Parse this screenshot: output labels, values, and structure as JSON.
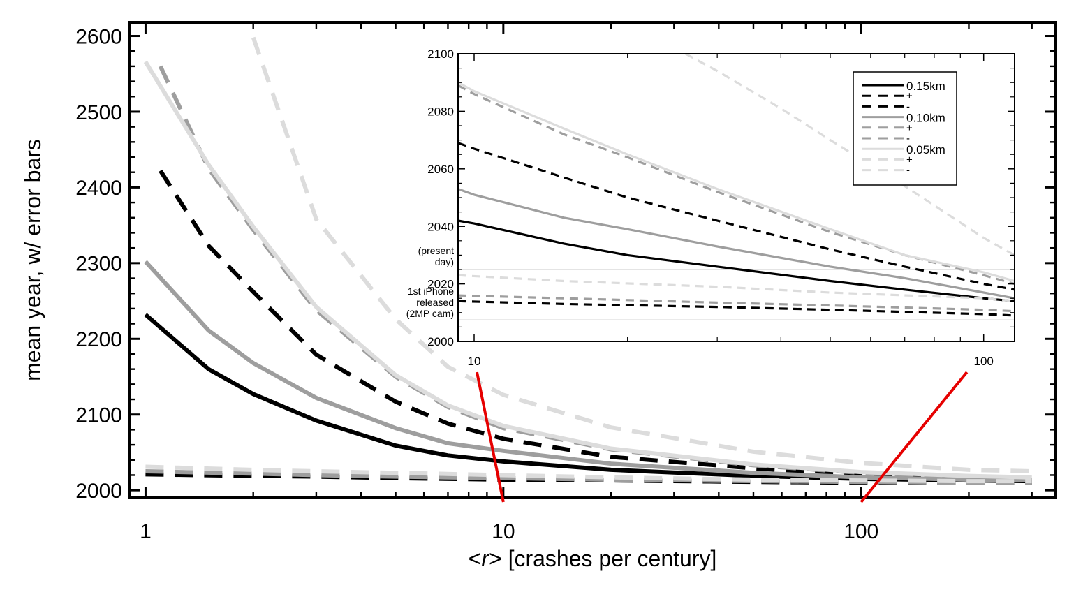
{
  "chart_data": [
    {
      "type": "line",
      "role": "main",
      "xscale": "log",
      "xlim": [
        0.9,
        350
      ],
      "ylim": [
        1990,
        2618
      ],
      "xlabel_prefix": "<",
      "xlabel_var": "r",
      "xlabel_suffix": "> [crashes per century]",
      "ylabel": "mean year, w/ error bars",
      "xticks": [
        1,
        10,
        100
      ],
      "xtick_labels": [
        "1",
        "10",
        "100"
      ],
      "yticks": [
        2000,
        2100,
        2200,
        2300,
        2400,
        2500,
        2600
      ],
      "ytick_labels": [
        "2000",
        "2100",
        "2200",
        "2300",
        "2400",
        "2500",
        "2600"
      ],
      "series": [
        {
          "color": "#000000",
          "style": "solid",
          "x": [
            1,
            1.5,
            2,
            3,
            5,
            7,
            10,
            20,
            50,
            100,
            200,
            300
          ],
          "y": [
            2232,
            2160,
            2127,
            2092,
            2059,
            2046,
            2038,
            2027,
            2019,
            2015,
            2013,
            2012
          ]
        },
        {
          "color": "#000000",
          "style": "dashed",
          "x": [
            1.1,
            1.5,
            2,
            3,
            5,
            7,
            10,
            20,
            50,
            100,
            200,
            300
          ],
          "y": [
            2422,
            2323,
            2262,
            2179,
            2117,
            2088,
            2068,
            2044,
            2029,
            2020,
            2016,
            2014
          ]
        },
        {
          "color": "#000000",
          "style": "dashed",
          "x": [
            1,
            2,
            3,
            5,
            10,
            20,
            50,
            100,
            200,
            300
          ],
          "y": [
            2021,
            2019,
            2018,
            2016,
            2014,
            2013,
            2011,
            2010,
            2010,
            2010
          ]
        },
        {
          "color": "#9e9e9e",
          "style": "solid",
          "x": [
            1,
            1.5,
            2,
            3,
            5,
            7,
            10,
            20,
            50,
            100,
            200,
            300
          ],
          "y": [
            2302,
            2211,
            2168,
            2122,
            2082,
            2062,
            2052,
            2035,
            2023,
            2017,
            2014,
            2013
          ]
        },
        {
          "color": "#9e9e9e",
          "style": "dashed",
          "x": [
            1.1,
            1.5,
            2,
            3,
            5,
            7,
            10,
            20,
            50,
            100,
            200,
            300
          ],
          "y": [
            2560,
            2425,
            2344,
            2238,
            2150,
            2110,
            2082,
            2054,
            2033,
            2023,
            2018,
            2016
          ]
        },
        {
          "color": "#9e9e9e",
          "style": "dashed",
          "x": [
            1,
            2,
            3,
            5,
            10,
            20,
            50,
            100,
            200,
            300
          ],
          "y": [
            2025,
            2022,
            2020,
            2018,
            2016,
            2014,
            2012,
            2011,
            2010,
            2010
          ]
        },
        {
          "color": "#dcdcdc",
          "style": "solid",
          "x": [
            1,
            1.5,
            2,
            3,
            5,
            7,
            10,
            20,
            50,
            100,
            200,
            300
          ],
          "y": [
            2566,
            2430,
            2348,
            2242,
            2152,
            2112,
            2085,
            2055,
            2034,
            2024,
            2019,
            2017
          ]
        },
        {
          "color": "#dcdcdc",
          "style": "dashed",
          "x": [
            2,
            3,
            5,
            7,
            10,
            20,
            50,
            100,
            200,
            300
          ],
          "y": [
            2598,
            2358,
            2226,
            2163,
            2126,
            2083,
            2051,
            2036,
            2027,
            2025
          ]
        },
        {
          "color": "#dcdcdc",
          "style": "dashed",
          "x": [
            1,
            2,
            3,
            5,
            10,
            20,
            50,
            100,
            200,
            300
          ],
          "y": [
            2031,
            2027,
            2025,
            2023,
            2020,
            2017,
            2014,
            2013,
            2012,
            2012
          ]
        }
      ]
    },
    {
      "type": "line",
      "role": "inset",
      "xscale": "log",
      "xlim": [
        9.3,
        115
      ],
      "ylim": [
        2000,
        2100
      ],
      "xticks": [
        10,
        100
      ],
      "xtick_labels": [
        "10",
        "100"
      ],
      "yticks": [
        2000,
        2020,
        2040,
        2060,
        2080,
        2100
      ],
      "ytick_labels": [
        "2000",
        "2020",
        "2040",
        "2060",
        "2080",
        "2100"
      ],
      "reference_lines": [
        {
          "y": 2025,
          "label": [
            "(present",
            "day)"
          ]
        },
        {
          "y": 2007.5,
          "label": [
            "1st iPhone",
            "released",
            "(2MP cam)"
          ]
        }
      ],
      "legend": {
        "position": "top-right",
        "entries": [
          {
            "label": "0.15km",
            "color": "#000000",
            "style": "solid"
          },
          {
            "label": "+",
            "color": "#000000",
            "style": "dashed"
          },
          {
            "label": "-",
            "color": "#000000",
            "style": "dashed"
          },
          {
            "label": "0.10km",
            "color": "#9e9e9e",
            "style": "solid"
          },
          {
            "label": "+",
            "color": "#9e9e9e",
            "style": "dashed"
          },
          {
            "label": "-",
            "color": "#9e9e9e",
            "style": "dashed"
          },
          {
            "label": "0.05km",
            "color": "#dcdcdc",
            "style": "solid"
          },
          {
            "label": "+",
            "color": "#dcdcdc",
            "style": "dashed"
          },
          {
            "label": "-",
            "color": "#dcdcdc",
            "style": "dashed"
          }
        ]
      },
      "series": [
        {
          "color": "#000000",
          "style": "solid",
          "x": [
            9.3,
            10,
            15,
            20,
            30,
            50,
            70,
            100,
            115
          ],
          "y": [
            2042,
            2041,
            2034,
            2030,
            2026,
            2021,
            2018,
            2015,
            2014
          ]
        },
        {
          "color": "#000000",
          "style": "dashed",
          "x": [
            9.3,
            10,
            15,
            20,
            30,
            50,
            70,
            100,
            115
          ],
          "y": [
            2069,
            2067,
            2057,
            2050,
            2042,
            2032,
            2026,
            2020,
            2018
          ]
        },
        {
          "color": "#000000",
          "style": "dashed",
          "x": [
            9.3,
            15,
            30,
            50,
            100,
            115
          ],
          "y": [
            2014,
            2013,
            2012,
            2011,
            2009.5,
            2009
          ]
        },
        {
          "color": "#9e9e9e",
          "style": "solid",
          "x": [
            9.3,
            10,
            15,
            20,
            30,
            50,
            70,
            100,
            115
          ],
          "y": [
            2053,
            2051,
            2043,
            2039,
            2033,
            2026,
            2022,
            2017,
            2015
          ]
        },
        {
          "color": "#9e9e9e",
          "style": "dashed",
          "x": [
            9.3,
            10,
            15,
            20,
            30,
            50,
            70,
            100,
            115
          ],
          "y": [
            2089,
            2086,
            2072,
            2064,
            2052,
            2038,
            2030,
            2023,
            2020
          ]
        },
        {
          "color": "#9e9e9e",
          "style": "dashed",
          "x": [
            9.3,
            15,
            30,
            50,
            100,
            115
          ],
          "y": [
            2016,
            2015,
            2013.5,
            2012.5,
            2011,
            2010.5
          ]
        },
        {
          "color": "#dcdcdc",
          "style": "solid",
          "x": [
            9.3,
            10,
            15,
            20,
            30,
            50,
            70,
            100,
            115
          ],
          "y": [
            2090,
            2087,
            2074,
            2065,
            2053,
            2039,
            2030,
            2024,
            2021
          ]
        },
        {
          "color": "#dcdcdc",
          "style": "dashed",
          "x": [
            26,
            30,
            40,
            50,
            70,
            100,
            115
          ],
          "y": [
            2100,
            2094,
            2081,
            2070,
            2054,
            2036,
            2030
          ]
        },
        {
          "color": "#dcdcdc",
          "style": "dashed",
          "x": [
            9.3,
            15,
            30,
            50,
            100,
            115
          ],
          "y": [
            2023,
            2021,
            2019,
            2017,
            2015,
            2014
          ]
        }
      ]
    }
  ]
}
